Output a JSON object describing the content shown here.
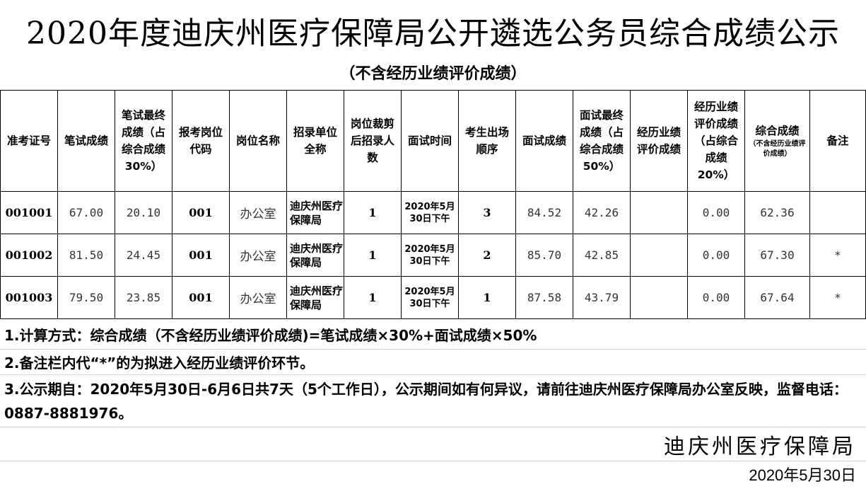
{
  "title": "2020年度迪庆州医疗保障局公开遴选公务员综合成绩公示",
  "subtitle": "（不含经历业绩评价成绩）",
  "headers": [
    "准考证号",
    "笔试成绩",
    "笔试最终成绩（占综合成绩30%）",
    "报考岗位代码",
    "岗位名称",
    "招录单位全称",
    "岗位裁剪后招录人数",
    "面试时间",
    "考生出场顺序",
    "面试成绩",
    "面试最终成绩（占综合成绩50%）",
    "经历业绩评价成绩",
    "经历业绩评价成绩（占综合成绩20%）",
    "综合成绩",
    "备注"
  ],
  "header_sub": "（不含经历业绩评价成绩）",
  "rows": [
    [
      "001001",
      "67.00",
      "20.10",
      "001",
      "办公室",
      "迪庆州医疗保障局",
      "1",
      "2020年5月30日下午",
      "3",
      "84.52",
      "42.26",
      "",
      "0.00",
      "62.36",
      ""
    ],
    [
      "001002",
      "81.50",
      "24.45",
      "001",
      "办公室",
      "迪庆州医疗保障局",
      "1",
      "2020年5月30日下午",
      "2",
      "85.70",
      "42.85",
      "",
      "0.00",
      "67.30",
      "*"
    ],
    [
      "001003",
      "79.50",
      "23.85",
      "001",
      "办公室",
      "迪庆州医疗保障局",
      "1",
      "2020年5月30日下午",
      "1",
      "87.58",
      "43.79",
      "",
      "0.00",
      "67.64",
      "*"
    ]
  ],
  "notes": [
    "1.计算方式：综合成绩（不含经历业绩评价成绩)=笔试成绩×30%+面试成绩×50%",
    "2.备注栏内代“*”的为拟进入经历业绩评价环节。",
    "3.公示期自：2020年5月30日-6月6日共7天（5个工作日），公示期间如有何异议，请前往迪庆州医疗保障局办公室反映，监督电话：0887-8881976。"
  ],
  "signature": "迪庆州医疗保障局",
  "date": "2020年5月30日"
}
